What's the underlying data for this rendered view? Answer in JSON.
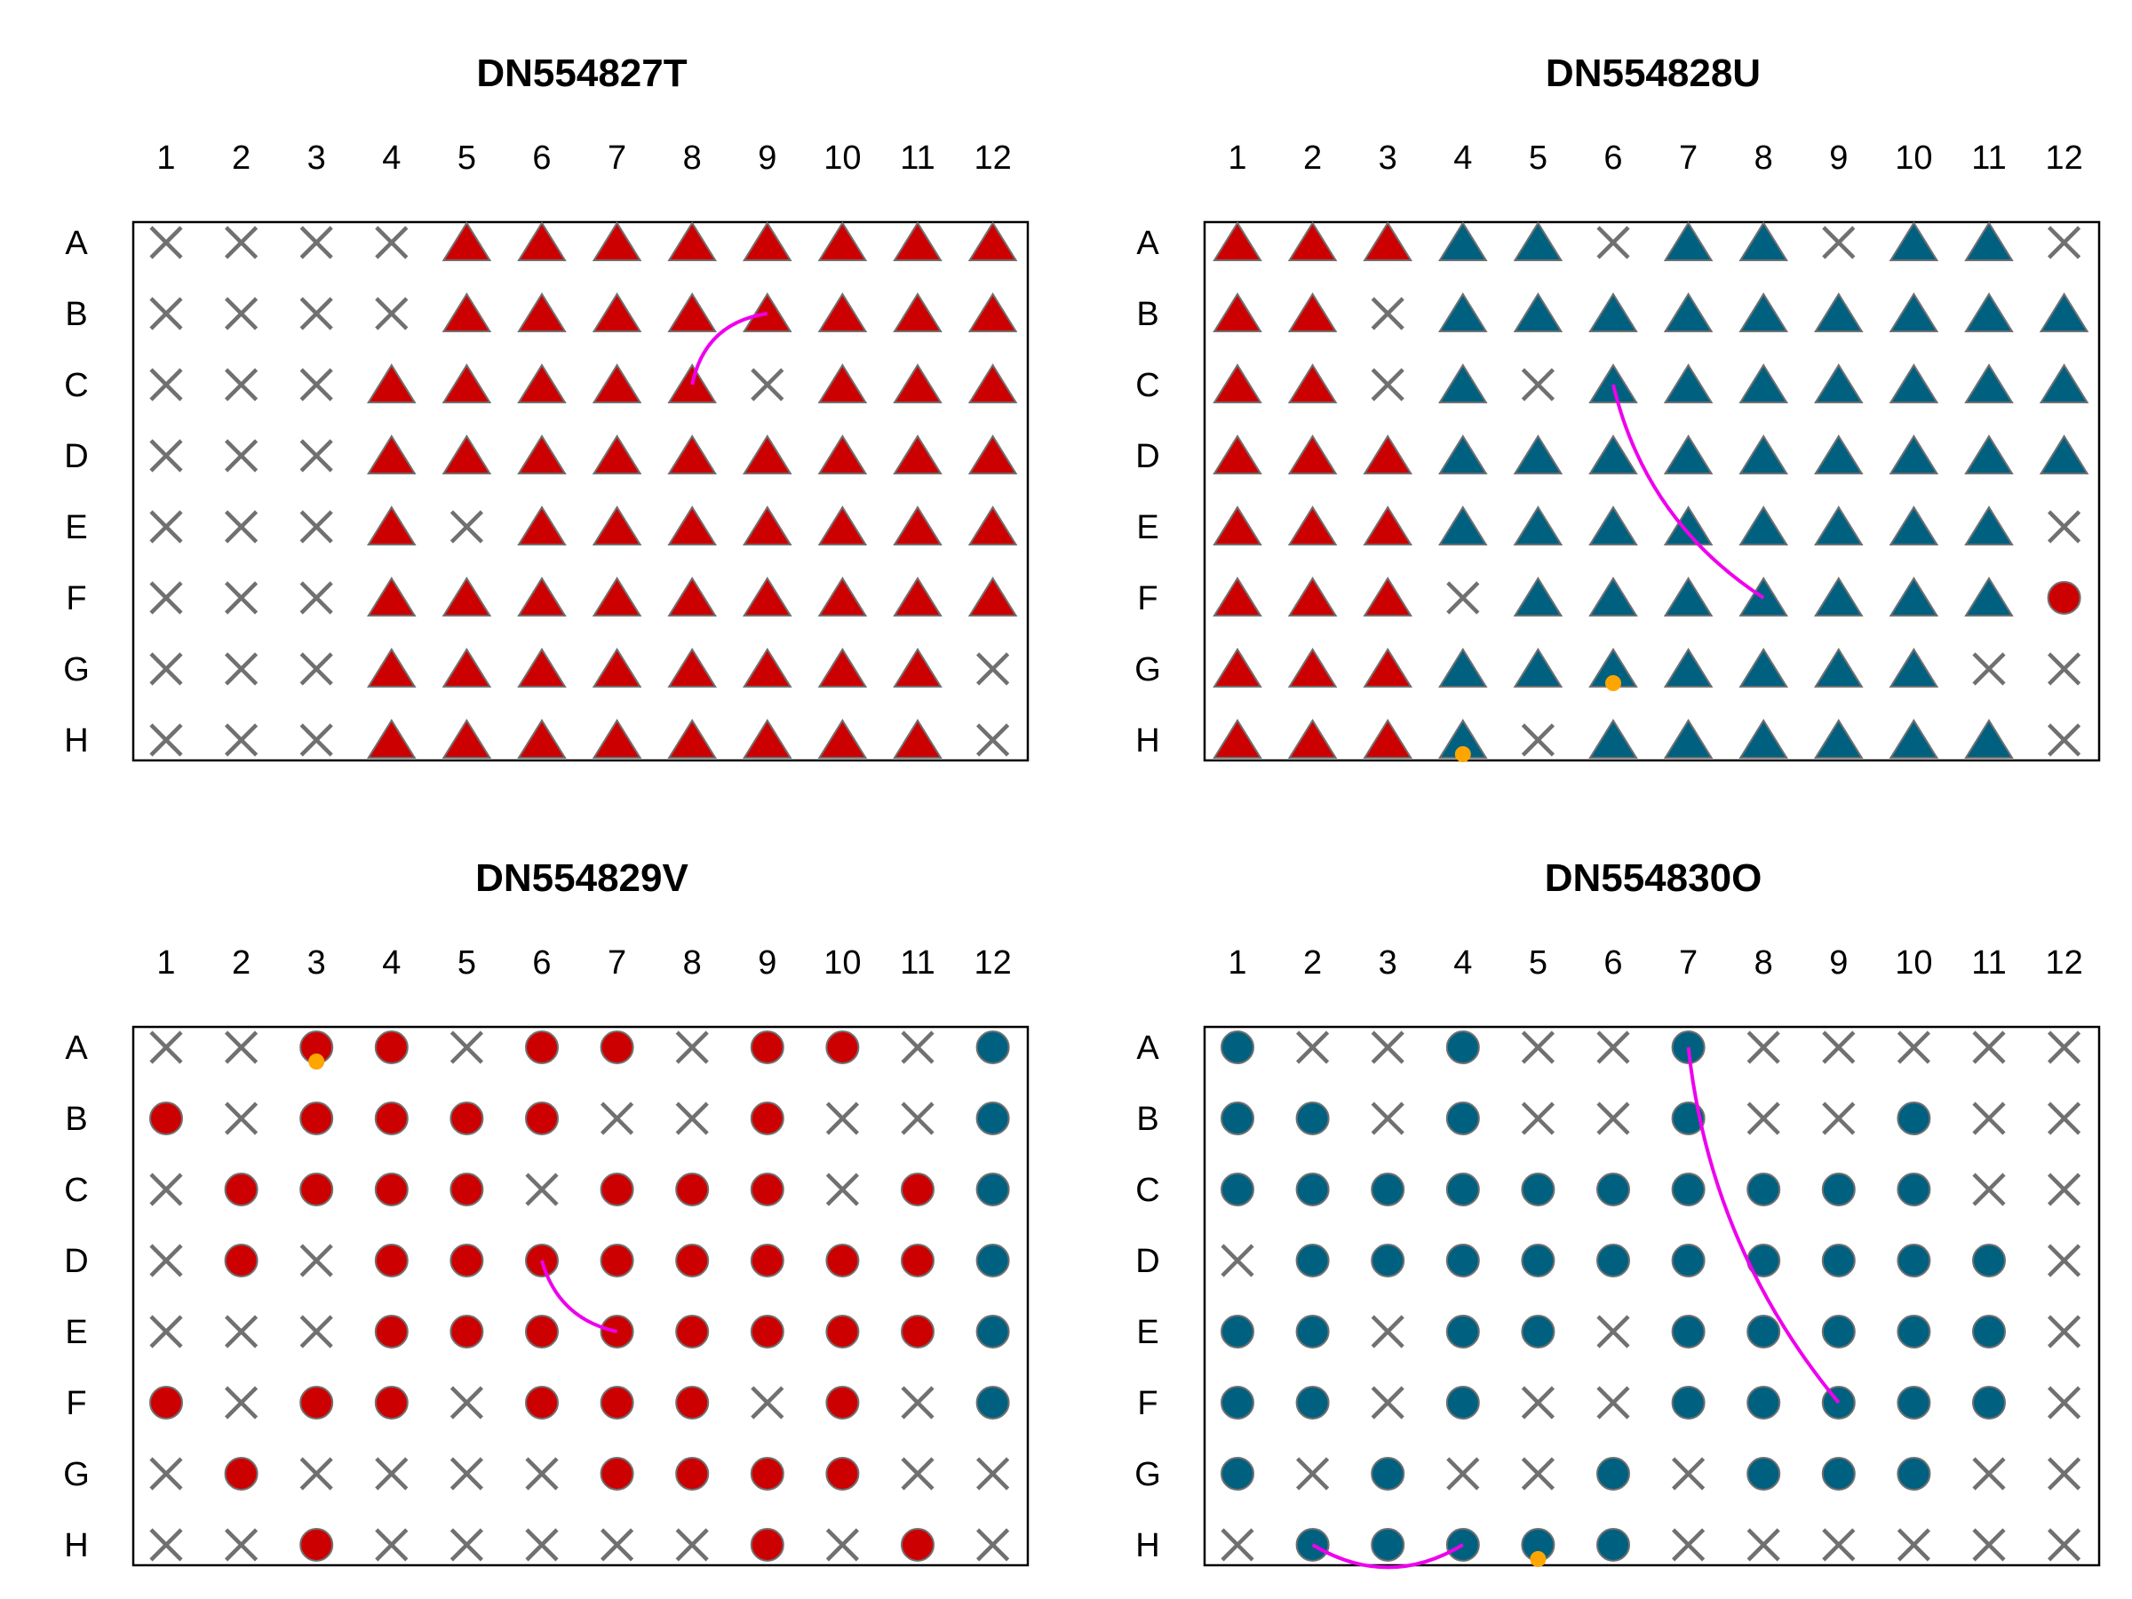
{
  "columns": [
    "1",
    "2",
    "3",
    "4",
    "5",
    "6",
    "7",
    "8",
    "9",
    "10",
    "11",
    "12"
  ],
  "rows": [
    "A",
    "B",
    "C",
    "D",
    "E",
    "F",
    "G",
    "H"
  ],
  "colors": {
    "red": "#cc0000",
    "blue": "#006080",
    "outline": "#707070",
    "cross": "#707070",
    "path": "#ee00ee",
    "dot": "#ffa500"
  },
  "legend_key": {
    "x": "empty well",
    "t": "triangle marker",
    "c": "circle marker",
    "r": "red",
    "b": "blue"
  },
  "plates": [
    {
      "title": "DN554827T",
      "grid": [
        "x x x x tr tr tr tr tr tr tr tr",
        "x x x x tr tr tr tr tr tr tr tr",
        "x x x tr tr tr tr tr x tr tr tr",
        "x x x tr tr tr tr tr tr tr tr tr",
        "x x x tr x tr tr tr tr tr tr tr",
        "x x x tr tr tr tr tr tr tr tr tr",
        "x x x tr tr tr tr tr tr tr tr x",
        "x x x tr tr tr tr tr tr tr tr x"
      ],
      "arcs": [
        {
          "from": "B9",
          "to": "C8",
          "bend": 0.35
        }
      ],
      "dots": []
    },
    {
      "title": "DN554828U",
      "grid": [
        "tr tr tr tb tb x tb tb x tb tb x",
        "tr tr x tb tb tb tb tb tb tb tb tb",
        "tr tr x tb x tb tb tb tb tb tb tb",
        "tr tr tr tb tb tb tb tb tb tb tb tb",
        "tr tr tr tb tb tb tb tb tb tb tb x",
        "tr tr tr x tb tb tb tb tb tb tb cr",
        "tr tr tr tb tb tb tb tb tb tb x x",
        "tr tr tr tb x tb tb tb tb tb tb x"
      ],
      "arcs": [
        {
          "from": "C6",
          "to": "F8",
          "bend": 0.2
        }
      ],
      "dots": [
        "G6",
        "H4"
      ]
    },
    {
      "title": "DN554829V",
      "grid": [
        "x x cr cr x cr cr x cr cr x cb",
        "cr x cr cr cr cr x x cr x x cb",
        "x cr cr cr cr x cr cr cr x cr cb",
        "x cr x cr cr cr cr cr cr cr cr cb",
        "x x x cr cr cr cr cr cr cr cr cb",
        "cr x cr cr x cr cr cr x cr x cb",
        "x cr x x x x cr cr cr cr x x",
        "x x cr x x x x x cr x cr x"
      ],
      "arcs": [
        {
          "from": "D6",
          "to": "E7",
          "bend": 0.3
        }
      ],
      "dots": [
        "A3"
      ]
    },
    {
      "title": "DN554830O",
      "grid": [
        "cb x x cb x x cb x x x x x",
        "cb cb x cb x x cb x x cb x x",
        "cb cb cb cb cb cb cb cb cb cb x x",
        "x cb cb cb cb cb cb cb cb cb cb x",
        "cb cb x cb cb x cb cb cb cb cb x",
        "cb cb x cb x x cb cb cb cb cb x",
        "cb x cb x x cb x cb cb cb x x",
        "x cb cb cb cb cb x x x x x x"
      ],
      "arcs": [
        {
          "from": "A7",
          "to": "F9",
          "bend": 0.15
        },
        {
          "from": "H2",
          "to": "H4",
          "bend": 0.3
        }
      ],
      "dots": [
        "H5"
      ]
    }
  ]
}
